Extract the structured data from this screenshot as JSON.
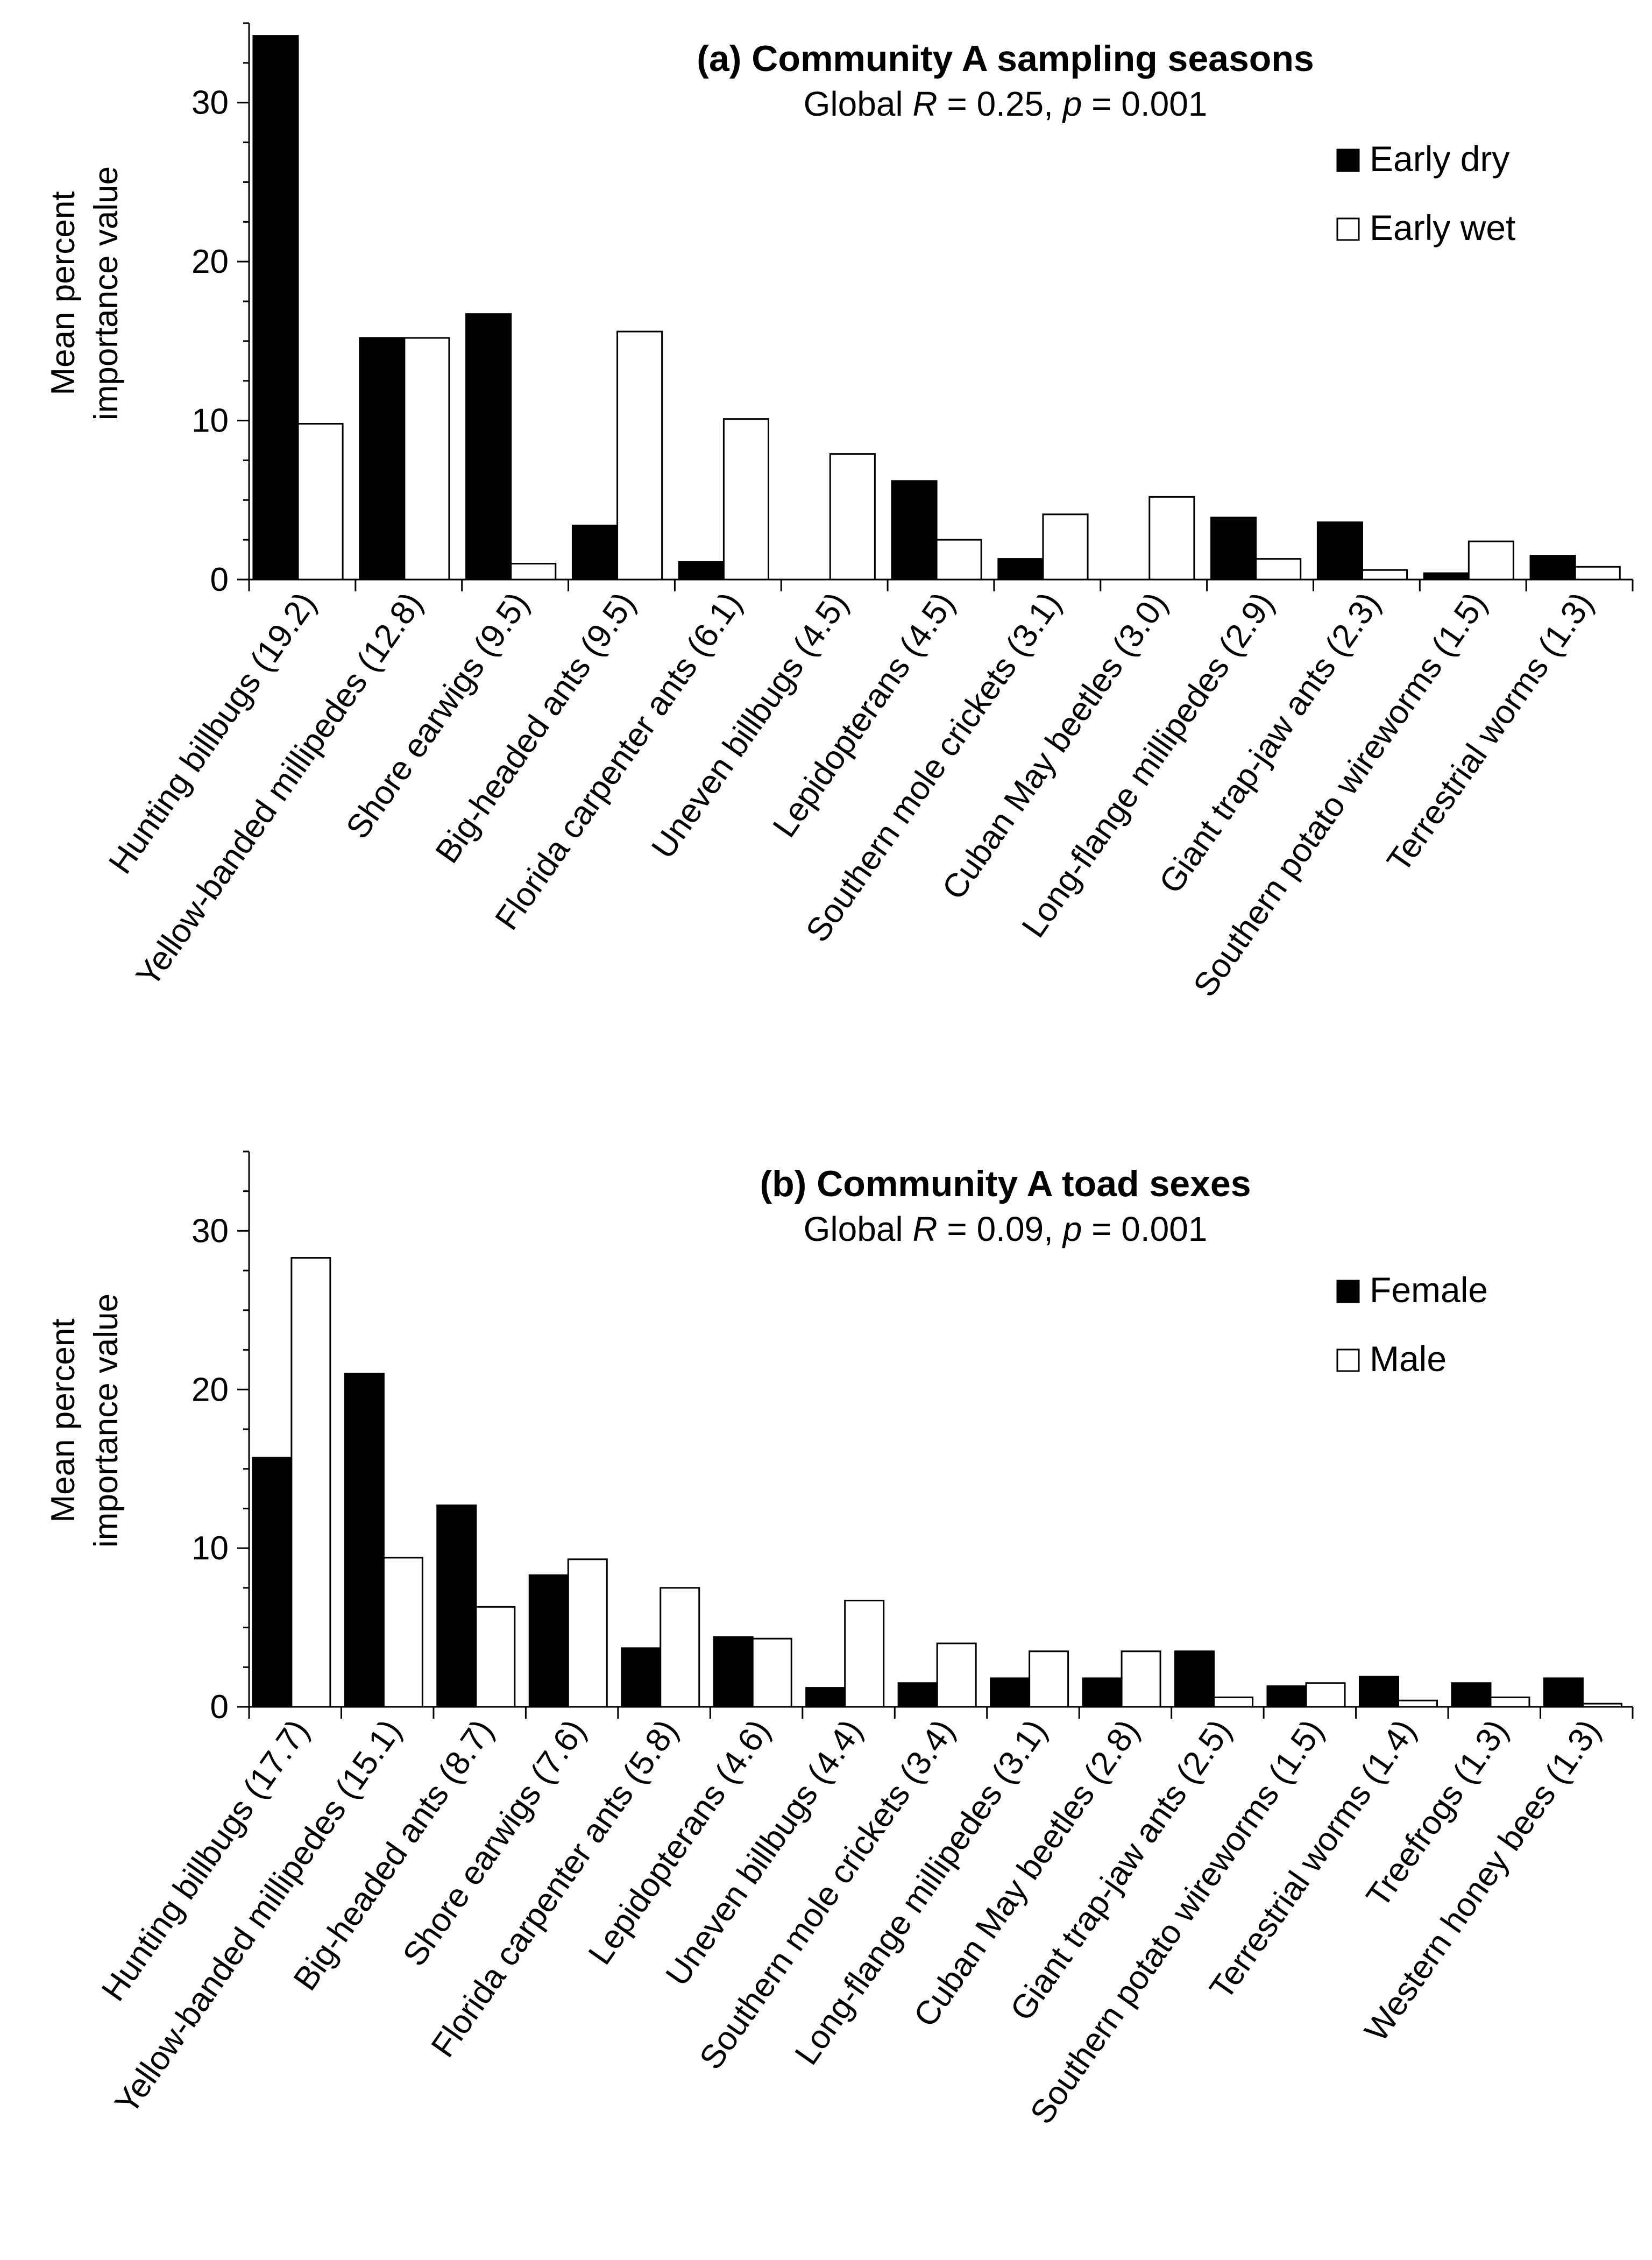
{
  "chart_data": [
    {
      "type": "bar",
      "title": "(a) Community A sampling seasons",
      "subtitle": {
        "prefix": "Global ",
        "r_symbol": "R",
        "r_part": " = 0.25, ",
        "p_symbol": "p",
        "p_part": " = 0.001"
      },
      "ylabel": [
        "Mean percent",
        "importance value"
      ],
      "ylim": [
        0,
        35
      ],
      "yticks": [
        0,
        10,
        20,
        30
      ],
      "categories": [
        "Hunting billbugs (19.2)",
        "Yellow-banded millipedes (12.8)",
        "Shore earwigs (9.5)",
        "Big-headed ants (9.5)",
        "Florida carpenter ants (6.1)",
        "Uneven billbugs (4.5)",
        "Lepidopterans (4.5)",
        "Southern mole crickets (3.1)",
        "Cuban May beetles (3.0)",
        "Long-flange millipedes (2.9)",
        "Giant trap-jaw ants (2.3)",
        "Southern potato wireworms (1.5)",
        "Terrestrial worms (1.3)"
      ],
      "series": [
        {
          "name": "Early dry",
          "color": "#000000",
          "values": [
            34.2,
            15.2,
            16.7,
            3.4,
            1.1,
            0,
            6.2,
            1.3,
            0,
            3.9,
            3.6,
            0.4,
            1.5
          ]
        },
        {
          "name": "Early wet",
          "color": "#ffffff",
          "values": [
            9.8,
            15.2,
            1.0,
            15.6,
            10.1,
            7.9,
            2.5,
            4.1,
            5.2,
            1.3,
            0.6,
            2.4,
            0.8
          ]
        }
      ],
      "legend": "top-right"
    },
    {
      "type": "bar",
      "title": "(b) Community A toad sexes",
      "subtitle": {
        "prefix": "Global ",
        "r_symbol": "R",
        "r_part": " = 0.09, ",
        "p_symbol": "p",
        "p_part": " = 0.001"
      },
      "ylabel": [
        "Mean percent",
        "importance value"
      ],
      "ylim": [
        0,
        35
      ],
      "yticks": [
        0,
        10,
        20,
        30
      ],
      "categories": [
        "Hunting billbugs (17.7)",
        "Yellow-banded millipedes (15.1)",
        "Big-headed ants (8.7)",
        "Shore earwigs (7.6)",
        "Florida carpenter ants (5.8)",
        "Lepidopterans (4.6)",
        "Uneven billbugs (4.4)",
        "Southern mole crickets (3.4)",
        "Long-flange millipedes (3.1)",
        "Cuban May beetles (2.8)",
        "Giant trap-jaw ants (2.5)",
        "Southern potato wireworms (1.5)",
        "Terrestrial worms (1.4)",
        "Treefrogs (1.3)",
        "Western honey bees (1.3)"
      ],
      "series": [
        {
          "name": "Female",
          "color": "#000000",
          "values": [
            15.7,
            21.0,
            12.7,
            8.3,
            3.7,
            4.4,
            1.2,
            1.5,
            1.8,
            1.8,
            3.5,
            1.3,
            1.9,
            1.5,
            1.8
          ]
        },
        {
          "name": "Male",
          "color": "#ffffff",
          "values": [
            28.3,
            9.4,
            6.3,
            9.3,
            7.5,
            4.3,
            6.7,
            4.0,
            3.5,
            3.5,
            0.6,
            1.5,
            0.4,
            0.6,
            0.2
          ]
        }
      ],
      "legend": "top-right"
    }
  ]
}
